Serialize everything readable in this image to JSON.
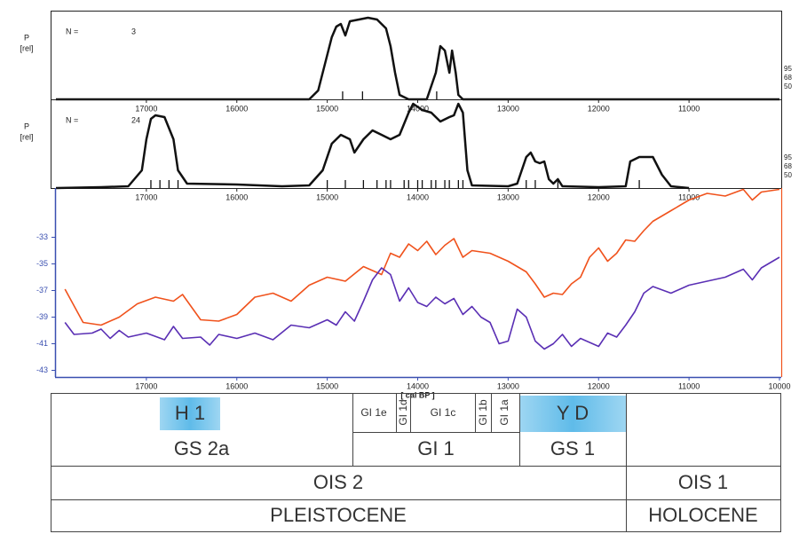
{
  "chart_data": [
    {
      "type": "line",
      "ylabel": "P",
      "ylabel_unit": "[rel]",
      "n_label": "N =",
      "n": 3,
      "levels": [
        95,
        68,
        50
      ],
      "xlim": [
        18000,
        10000
      ],
      "xticks": [
        17000,
        16000,
        15000,
        14000,
        13000,
        12000,
        11000
      ],
      "ylim": [
        0,
        1
      ],
      "dates": [
        14830,
        14610,
        13790
      ],
      "series": [
        {
          "color": "#111111",
          "x": [
            18000,
            15200,
            15100,
            15000,
            14950,
            14900,
            14850,
            14800,
            14750,
            14650,
            14550,
            14450,
            14350,
            14300,
            14250,
            14200,
            14100,
            13900,
            13800,
            13750,
            13700,
            13650,
            13620,
            13580,
            13550,
            13500,
            10000
          ],
          "values": [
            0,
            0,
            0.1,
            0.5,
            0.7,
            0.82,
            0.85,
            0.72,
            0.88,
            0.9,
            0.92,
            0.9,
            0.8,
            0.6,
            0.3,
            0.05,
            0,
            0,
            0.3,
            0.6,
            0.55,
            0.3,
            0.55,
            0.3,
            0.05,
            0,
            0
          ]
        }
      ]
    },
    {
      "type": "line",
      "ylabel": "P",
      "ylabel_unit": "[rel]",
      "n_label": "N =",
      "n": 24,
      "levels": [
        95,
        68,
        50
      ],
      "xlim": [
        18000,
        10000
      ],
      "xticks": [
        17000,
        16000,
        15000,
        14000,
        13000,
        12000,
        11000
      ],
      "ylim": [
        0,
        1
      ],
      "dates": [
        16950,
        16850,
        16750,
        16650,
        15000,
        14800,
        14600,
        14450,
        14350,
        14300,
        14150,
        14100,
        14000,
        13950,
        13850,
        13800,
        13700,
        13650,
        13550,
        13500,
        12800,
        12700,
        12450,
        11550
      ],
      "series": [
        {
          "color": "#111111",
          "x": [
            18000,
            17500,
            17200,
            17050,
            17000,
            16950,
            16900,
            16800,
            16700,
            16650,
            16550,
            16000,
            15500,
            15200,
            15050,
            14950,
            14850,
            14750,
            14700,
            14600,
            14500,
            14400,
            14300,
            14200,
            14100,
            14050,
            13950,
            13850,
            13750,
            13650,
            13600,
            13550,
            13500,
            13450,
            13400,
            13000,
            12900,
            12800,
            12750,
            12700,
            12650,
            12600,
            12550,
            12500,
            12450,
            12400,
            12000,
            11700,
            11650,
            11550,
            11400,
            11300,
            11200,
            11000
          ],
          "values": [
            0,
            0.01,
            0.02,
            0.2,
            0.55,
            0.78,
            0.82,
            0.8,
            0.55,
            0.2,
            0.05,
            0.04,
            0.02,
            0.03,
            0.2,
            0.5,
            0.6,
            0.55,
            0.4,
            0.55,
            0.65,
            0.6,
            0.55,
            0.6,
            0.85,
            0.95,
            0.88,
            0.85,
            0.75,
            0.8,
            0.82,
            0.95,
            0.85,
            0.2,
            0.03,
            0.02,
            0.05,
            0.35,
            0.4,
            0.3,
            0.28,
            0.3,
            0.1,
            0.05,
            0.1,
            0.02,
            0.01,
            0.02,
            0.3,
            0.35,
            0.35,
            0.15,
            0.02,
            0
          ]
        }
      ]
    },
    {
      "type": "line",
      "xlabel": "[ cal BP ]",
      "xlim": [
        18000,
        10000
      ],
      "xticks": [
        17000,
        16000,
        15000,
        14000,
        13000,
        12000,
        11000,
        10000
      ],
      "ylim": [
        -43.5,
        -29.3
      ],
      "yticks": [
        -33,
        -35,
        -37,
        -39,
        -41,
        -43
      ],
      "series": [
        {
          "color": "#f0521c",
          "x": [
            17900,
            17700,
            17500,
            17300,
            17100,
            16900,
            16700,
            16600,
            16400,
            16200,
            16000,
            15800,
            15600,
            15400,
            15200,
            15000,
            14800,
            14600,
            14400,
            14300,
            14200,
            14100,
            14000,
            13900,
            13800,
            13700,
            13600,
            13500,
            13400,
            13200,
            13000,
            12800,
            12700,
            12600,
            12500,
            12400,
            12300,
            12200,
            12100,
            12000,
            11900,
            11800,
            11700,
            11600,
            11500,
            11400,
            11200,
            11000,
            10800,
            10600,
            10400,
            10300,
            10200,
            10000
          ],
          "values": [
            -36.9,
            -39.4,
            -39.6,
            -39.0,
            -38.0,
            -37.5,
            -37.8,
            -37.3,
            -39.2,
            -39.3,
            -38.8,
            -37.5,
            -37.2,
            -37.8,
            -36.6,
            -36.0,
            -36.3,
            -35.2,
            -35.8,
            -34.2,
            -34.5,
            -33.5,
            -34.0,
            -33.3,
            -34.3,
            -33.6,
            -33.1,
            -34.5,
            -34.0,
            -34.2,
            -34.8,
            -35.6,
            -36.5,
            -37.5,
            -37.2,
            -37.3,
            -36.5,
            -36.0,
            -34.5,
            -33.8,
            -34.8,
            -34.2,
            -33.2,
            -33.3,
            -32.5,
            -31.8,
            -31.0,
            -30.2,
            -29.7,
            -29.9,
            -29.4,
            -30.2,
            -29.6,
            -29.4
          ]
        },
        {
          "color": "#5a2fb4",
          "x": [
            17900,
            17800,
            17600,
            17500,
            17400,
            17300,
            17200,
            17000,
            16800,
            16700,
            16600,
            16400,
            16300,
            16200,
            16000,
            15800,
            15600,
            15400,
            15200,
            15000,
            14900,
            14800,
            14700,
            14600,
            14500,
            14400,
            14300,
            14200,
            14100,
            14000,
            13900,
            13800,
            13700,
            13600,
            13500,
            13400,
            13300,
            13200,
            13100,
            13000,
            12900,
            12800,
            12700,
            12600,
            12500,
            12400,
            12300,
            12200,
            12000,
            11900,
            11800,
            11700,
            11600,
            11500,
            11400,
            11200,
            11000,
            10800,
            10600,
            10400,
            10300,
            10200,
            10000
          ],
          "values": [
            -39.4,
            -40.3,
            -40.2,
            -39.9,
            -40.6,
            -40.0,
            -40.5,
            -40.2,
            -40.7,
            -39.7,
            -40.6,
            -40.5,
            -41.1,
            -40.3,
            -40.6,
            -40.2,
            -40.7,
            -39.6,
            -39.8,
            -39.2,
            -39.6,
            -38.6,
            -39.3,
            -37.8,
            -36.2,
            -35.3,
            -35.8,
            -37.8,
            -36.8,
            -37.9,
            -38.2,
            -37.5,
            -38.0,
            -37.6,
            -38.8,
            -38.2,
            -39.0,
            -39.4,
            -41.0,
            -40.8,
            -38.4,
            -39.0,
            -40.8,
            -41.4,
            -41.0,
            -40.3,
            -41.2,
            -40.6,
            -41.2,
            -40.2,
            -40.5,
            -39.6,
            -38.6,
            -37.2,
            -36.7,
            -37.2,
            -36.6,
            -36.3,
            -36.0,
            -35.4,
            -36.2,
            -35.3,
            -34.5
          ]
        }
      ]
    }
  ],
  "stratigraphy": {
    "events": [
      "H 1",
      "Y D"
    ],
    "interstadials": [
      "GI 1e",
      "GI 1d",
      "GI 1c",
      "GI 1b",
      "GI 1a"
    ],
    "stages": [
      "GS 2a",
      "GI 1",
      "GS 1"
    ],
    "isotope_stages": [
      "OIS 2",
      "OIS 1"
    ],
    "epochs": [
      "PLEISTOCENE",
      "HOLOCENE"
    ]
  }
}
